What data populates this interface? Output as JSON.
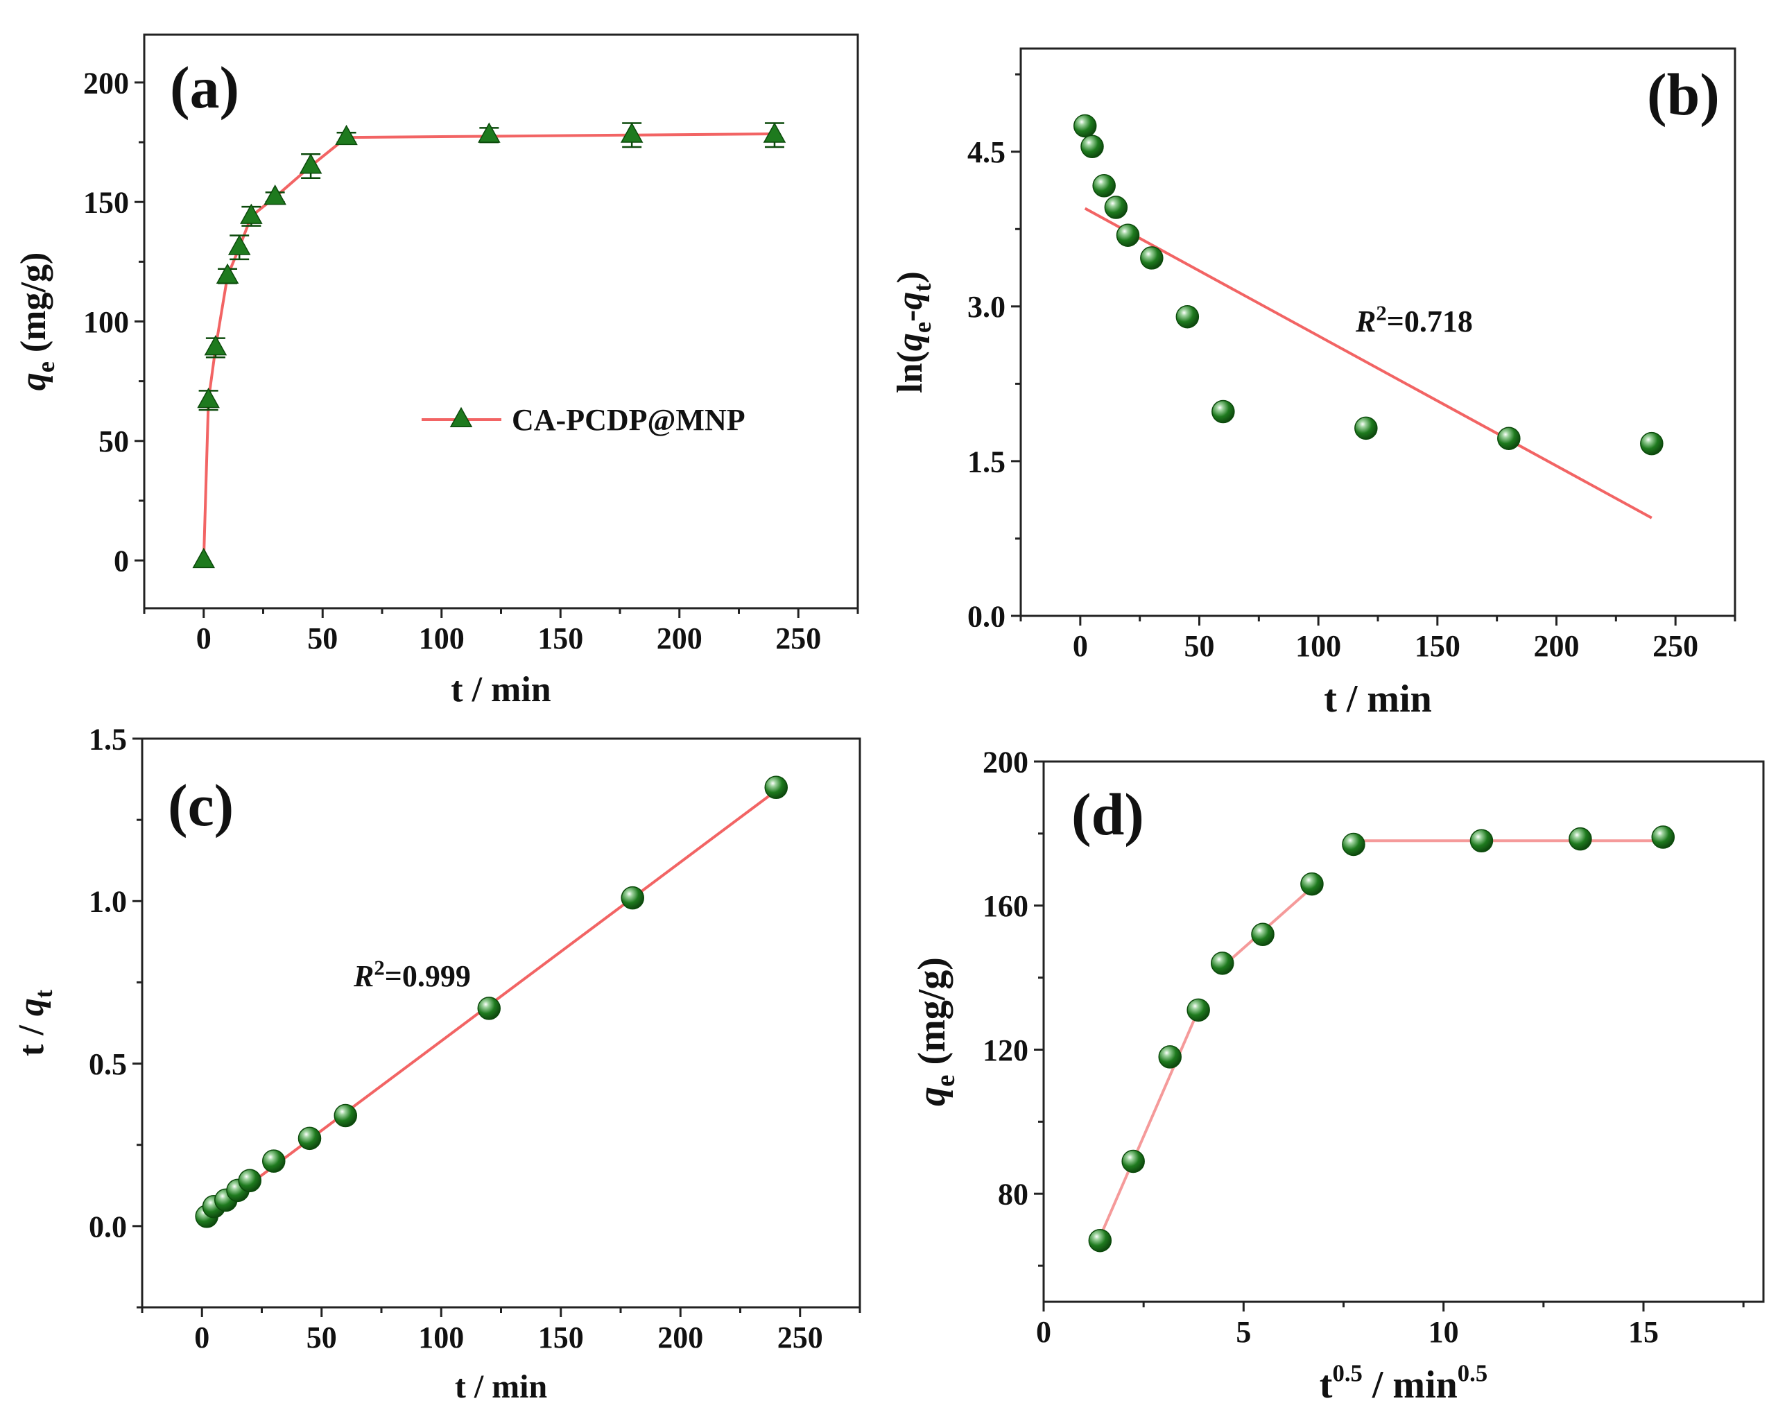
{
  "colors": {
    "line": "#F26464",
    "line_light": "#F59A9A",
    "marker": "#1E7A1E",
    "marker_dark": "#0B4A0B",
    "axis": "#222222"
  },
  "chart_data": [
    {
      "id": "a",
      "type": "line",
      "panel_label": "(a)",
      "xlabel": "t / min",
      "ylabel": {
        "var": "q",
        "sub": "e",
        "unit": " (mg/g)"
      },
      "xlim": [
        -25,
        275
      ],
      "ylim": [
        -20,
        220
      ],
      "xticks": [
        0,
        50,
        100,
        150,
        200,
        250
      ],
      "yticks": [
        0,
        50,
        100,
        150,
        200
      ],
      "xtick_labels": [
        "0",
        "50",
        "100",
        "150",
        "200",
        "250"
      ],
      "ytick_labels": [
        "0",
        "50",
        "100",
        "150",
        "200"
      ],
      "marker": "triangle",
      "series": [
        {
          "name": "CA-PCDP@MNP",
          "x": [
            0,
            2,
            5,
            10,
            15,
            20,
            30,
            45,
            60,
            120,
            180,
            240
          ],
          "y": [
            0,
            67,
            89,
            119,
            131,
            144,
            152,
            165,
            177,
            178,
            178,
            178
          ],
          "err": [
            0,
            4,
            4,
            3,
            5,
            4,
            2,
            5,
            2,
            3,
            5,
            5
          ],
          "fit_x": [
            0,
            2,
            5,
            10,
            15,
            20,
            30,
            45,
            60,
            120,
            180,
            240
          ],
          "fit_y": [
            0,
            67,
            89,
            119,
            131,
            144,
            152,
            165,
            177,
            177.5,
            178,
            178.5
          ]
        }
      ],
      "legend": {
        "label": "CA-PCDP@MNP",
        "position": "center-right"
      }
    },
    {
      "id": "b",
      "type": "scatter",
      "panel_label": "(b)",
      "xlabel": "t / min",
      "ylabel": {
        "pre": "ln(",
        "var": "q",
        "sub": "e",
        "mid": "-",
        "var2": "q",
        "sub2": "t",
        "post": ")"
      },
      "xlim": [
        -25,
        275
      ],
      "ylim": [
        0,
        5.5
      ],
      "xticks": [
        0,
        50,
        100,
        150,
        200,
        250
      ],
      "yticks": [
        0.0,
        1.5,
        3.0,
        4.5
      ],
      "xtick_labels": [
        "0",
        "50",
        "100",
        "150",
        "200",
        "250"
      ],
      "ytick_labels": [
        "0.0",
        "1.5",
        "3.0",
        "4.5"
      ],
      "marker": "sphere",
      "x": [
        2,
        5,
        10,
        15,
        20,
        30,
        45,
        60,
        120,
        180,
        240
      ],
      "y": [
        4.75,
        4.55,
        4.17,
        3.96,
        3.69,
        3.47,
        2.9,
        1.98,
        1.82,
        1.72,
        1.67
      ],
      "fit": {
        "x": [
          2,
          240
        ],
        "y": [
          3.95,
          0.95
        ]
      },
      "annotation": {
        "var": "R",
        "sup": "2",
        "text": "=0.718"
      }
    },
    {
      "id": "c",
      "type": "scatter",
      "panel_label": "(c)",
      "xlabel": "t / min",
      "ylabel": {
        "pre": "t / ",
        "var": "q",
        "sub": "t"
      },
      "xlim": [
        -25,
        275
      ],
      "ylim": [
        -0.25,
        1.5
      ],
      "xticks": [
        0,
        50,
        100,
        150,
        200,
        250
      ],
      "yticks": [
        0.0,
        0.5,
        1.0,
        1.5
      ],
      "xtick_labels": [
        "0",
        "50",
        "100",
        "150",
        "200",
        "250"
      ],
      "ytick_labels": [
        "0.0",
        "0.5",
        "1.0",
        "1.5"
      ],
      "marker": "sphere",
      "x": [
        2,
        5,
        10,
        15,
        20,
        30,
        45,
        60,
        120,
        180,
        240
      ],
      "y": [
        0.03,
        0.06,
        0.08,
        0.11,
        0.14,
        0.2,
        0.27,
        0.34,
        0.67,
        1.01,
        1.35
      ],
      "fit": {
        "x": [
          2,
          240
        ],
        "y": [
          0.03,
          1.34
        ]
      },
      "annotation": {
        "var": "R",
        "sup": "2",
        "text": "=0.999"
      }
    },
    {
      "id": "d",
      "type": "scatter",
      "panel_label": "(d)",
      "xlabel": {
        "pre": "t",
        "sup": "0.5",
        "mid": " / min",
        "sup2": "0.5"
      },
      "ylabel": {
        "var": "q",
        "sub": "e",
        "unit": " (mg/g)"
      },
      "xlim": [
        0,
        18
      ],
      "ylim": [
        50,
        200
      ],
      "xticks": [
        0,
        5,
        10,
        15
      ],
      "yticks": [
        80,
        120,
        160,
        200
      ],
      "xtick_labels": [
        "0",
        "5",
        "10",
        "15"
      ],
      "ytick_labels": [
        "80",
        "120",
        "160",
        "200"
      ],
      "marker": "sphere",
      "x": [
        1.41,
        2.24,
        3.16,
        3.87,
        4.47,
        5.48,
        6.71,
        7.75,
        10.95,
        13.42,
        15.49
      ],
      "y": [
        67,
        89,
        118,
        131,
        144,
        152,
        166,
        177,
        178,
        178.5,
        179
      ],
      "segments": [
        {
          "x": [
            1.41,
            3.87
          ],
          "y": [
            68,
            131
          ]
        },
        {
          "x": [
            4.47,
            6.71
          ],
          "y": [
            143,
            165
          ]
        },
        {
          "x": [
            7.75,
            15.49
          ],
          "y": [
            178,
            178
          ]
        }
      ]
    }
  ]
}
